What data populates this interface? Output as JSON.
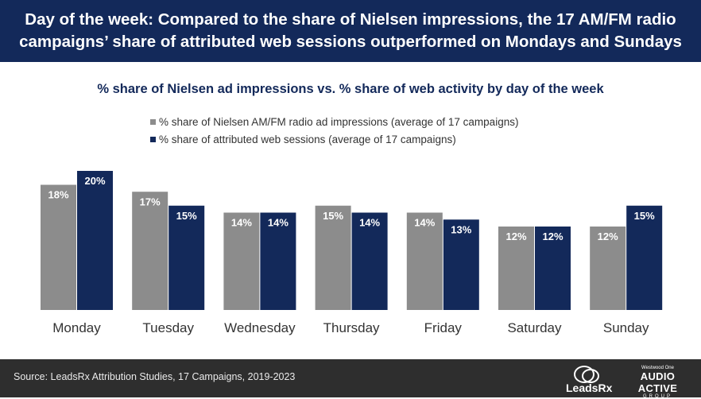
{
  "header": {
    "title": "Day of the week: Compared to the share of Nielsen impressions, the 17 AM/FM radio campaigns’ share of attributed web sessions outperformed on Mondays and Sundays"
  },
  "footer": {
    "source": "Source: LeadsRx Attribution Studies, 17 Campaigns, 2019-2023",
    "logo_leadsrx": "LeadsRx",
    "logo_aag_top": "Westwood One",
    "logo_aag_main": "AUDIO ACTIVE",
    "logo_aag_group": "GROUP"
  },
  "colors": {
    "nielsen": "#8c8c8c",
    "web": "#13295a",
    "header_bg": "#13295a",
    "footer_bg": "#2e2e2e"
  },
  "chart_data": {
    "type": "bar",
    "title": "% share of Nielsen ad impressions vs. % share of web activity by day of the week",
    "categories": [
      "Monday",
      "Tuesday",
      "Wednesday",
      "Thursday",
      "Friday",
      "Saturday",
      "Sunday"
    ],
    "series": [
      {
        "name": "% share of Nielsen AM/FM radio ad impressions (average of 17 campaigns)",
        "values": [
          18,
          17,
          14,
          15,
          14,
          12,
          12
        ],
        "labels": [
          "18%",
          "17%",
          "14%",
          "15%",
          "14%",
          "12%",
          "12%"
        ]
      },
      {
        "name": "% share of attributed web sessions (average of 17 campaigns)",
        "values": [
          20,
          15,
          14,
          14,
          13,
          12,
          15
        ],
        "labels": [
          "20%",
          "15%",
          "14%",
          "14%",
          "13%",
          "12%",
          "15%"
        ]
      }
    ],
    "ylim": [
      0,
      20.5
    ],
    "grid": false,
    "legend_position": "top-left"
  }
}
